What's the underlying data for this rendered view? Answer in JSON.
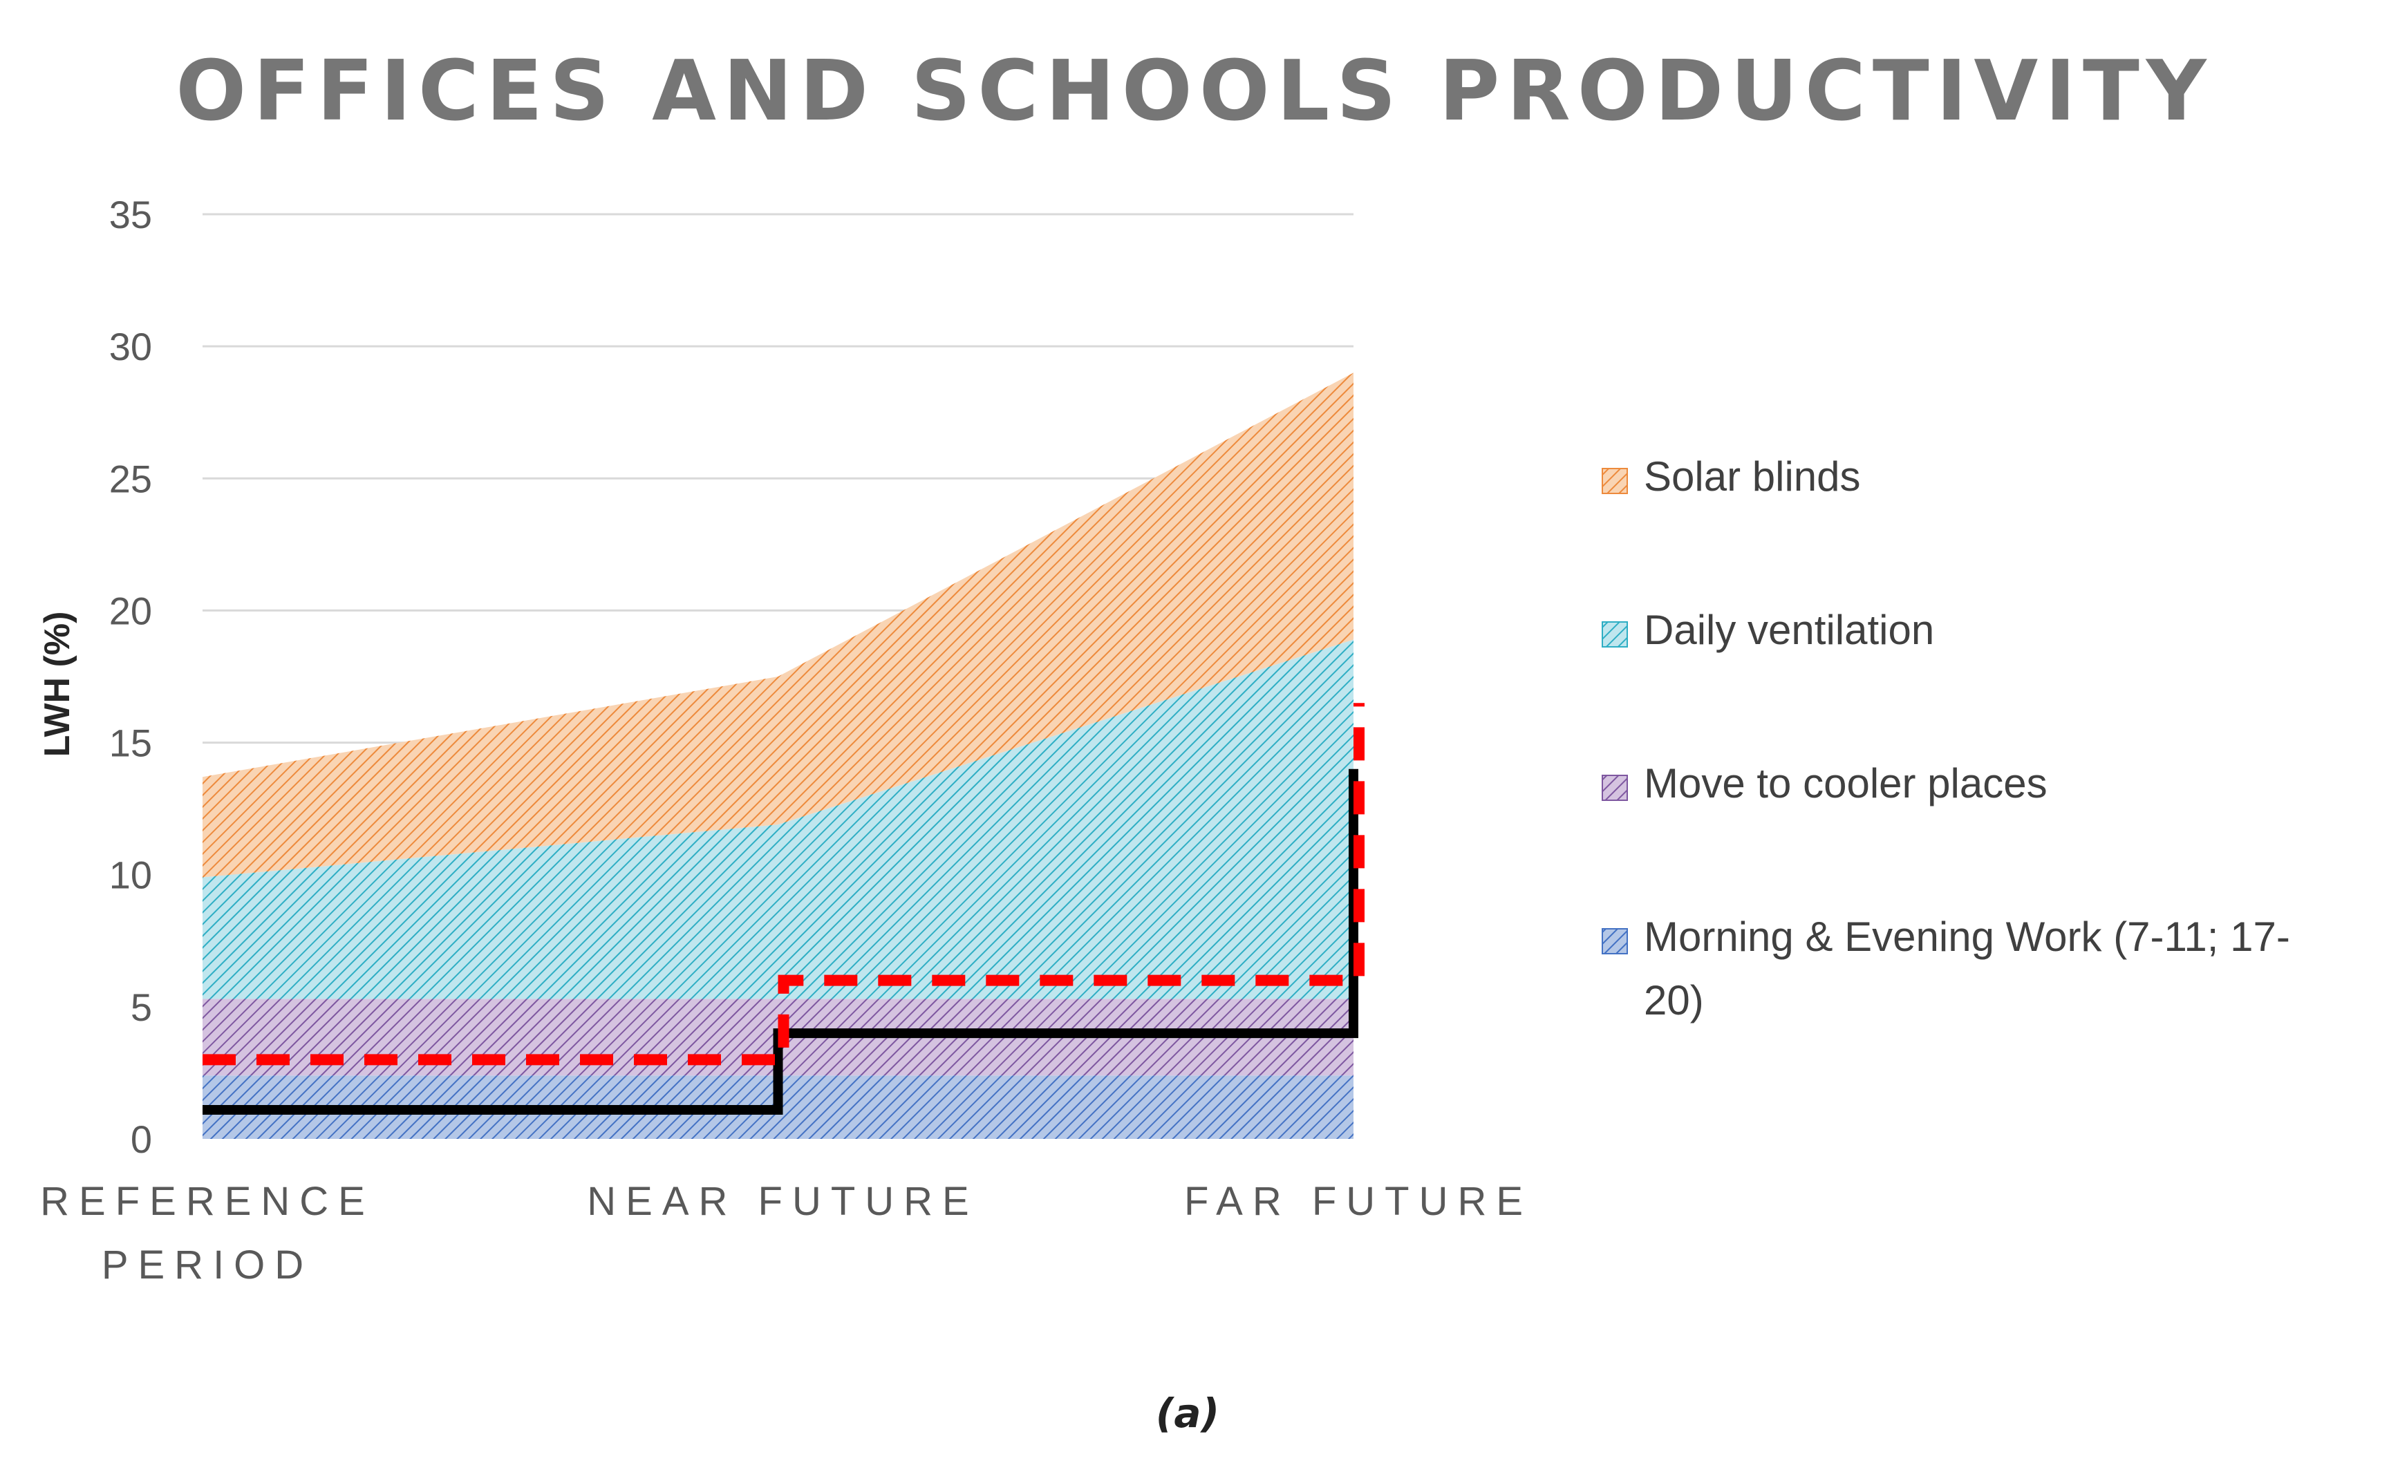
{
  "chart_data": {
    "type": "area",
    "stacked": true,
    "title": "OFFICES AND SCHOOLS PRODUCTIVITY",
    "xlabel": "",
    "ylabel": "LWH (%)",
    "ylim": [
      0,
      35
    ],
    "yticks": [
      0,
      5,
      10,
      15,
      20,
      25,
      30,
      35
    ],
    "grid": true,
    "categories": [
      [
        "REFERENCE",
        "PERIOD"
      ],
      [
        "NEAR FUTURE"
      ],
      [
        "FAR FUTURE"
      ]
    ],
    "series": [
      {
        "name": "Morning & Evening Work (7-11; 17-20)",
        "legend_lines": [
          "Morning & Evening Work (7-11; 17-",
          "20)"
        ],
        "values": [
          2.4,
          2.4,
          2.4
        ],
        "color": "#4472c4",
        "fill": "#b4c7e7"
      },
      {
        "name": "Move to cooler places",
        "legend_lines": [
          "Move to cooler places"
        ],
        "values": [
          2.9,
          2.9,
          2.9
        ],
        "color": "#7e57a0",
        "fill": "#d5c3e0"
      },
      {
        "name": "Daily ventilation",
        "legend_lines": [
          "Daily ventilation"
        ],
        "values": [
          4.6,
          6.6,
          13.6
        ],
        "color": "#2eaec4",
        "fill": "#bfe6ee"
      },
      {
        "name": "Solar blinds",
        "legend_lines": [
          "Solar blinds"
        ],
        "values": [
          3.8,
          5.6,
          10.1
        ],
        "color": "#ed8a3c",
        "fill": "#f9d4b3"
      }
    ],
    "step_lines": [
      {
        "name": "black-threshold",
        "values": [
          1.1,
          4.0,
          14.0
        ],
        "color": "#000000",
        "style": "solid"
      },
      {
        "name": "red-threshold",
        "values": [
          3.0,
          6.0,
          16.5
        ],
        "color": "#ff0000",
        "style": "dashed"
      }
    ],
    "legend_position": "right"
  },
  "caption": "(a)"
}
